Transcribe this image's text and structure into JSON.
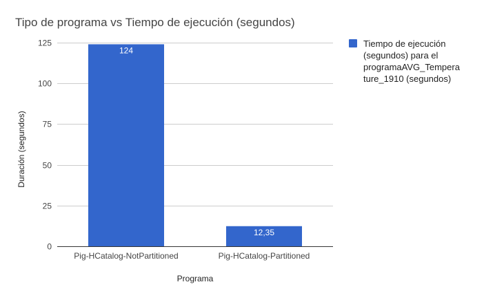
{
  "chart_data": {
    "type": "bar",
    "title": "Tipo de programa vs Tiempo de ejecución (segundos)",
    "xlabel": "Programa",
    "ylabel": "Duración (segundos)",
    "categories": [
      "Pig-HCatalog-NotPartitioned",
      "Pig-HCatalog-Partitioned"
    ],
    "series": [
      {
        "name": "Tiempo de ejecución (segundos) para el programaAVG_Temperature_1910 (segundos)",
        "legend_lines": [
          "Tiempo de ejecución",
          "(segundos) para el",
          "programaAVG_Tempera",
          "ture_1910 (segundos)"
        ],
        "values": [
          124,
          12.35
        ],
        "data_labels": [
          "124",
          "12,35"
        ],
        "color": "#3366cc"
      }
    ],
    "ylim": [
      0,
      125
    ],
    "yticks": [
      0,
      25,
      50,
      75,
      100,
      125
    ],
    "grid": true,
    "legend_position": "right"
  }
}
